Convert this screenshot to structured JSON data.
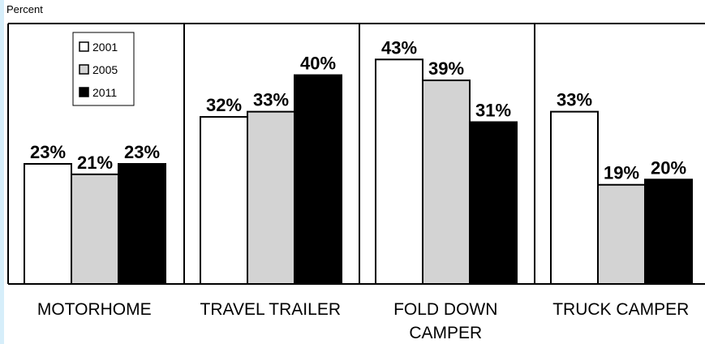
{
  "chart_data": {
    "type": "bar",
    "ylabel": "Percent",
    "ylim": [
      0,
      50
    ],
    "categories": [
      [
        "MOTORHOME"
      ],
      [
        "TRAVEL TRAILER"
      ],
      [
        "FOLD DOWN",
        "CAMPER"
      ],
      [
        "TRUCK CAMPER"
      ]
    ],
    "series": [
      {
        "name": "2001",
        "color": "#ffffff",
        "values": [
          23,
          32,
          43,
          33
        ]
      },
      {
        "name": "2005",
        "color": "#d3d3d3",
        "values": [
          21,
          33,
          39,
          19
        ]
      },
      {
        "name": "2011",
        "color": "#000000",
        "values": [
          23,
          40,
          31,
          20
        ]
      }
    ],
    "value_suffix": "%",
    "legend": {
      "placement": "top-left"
    },
    "grid": false
  }
}
